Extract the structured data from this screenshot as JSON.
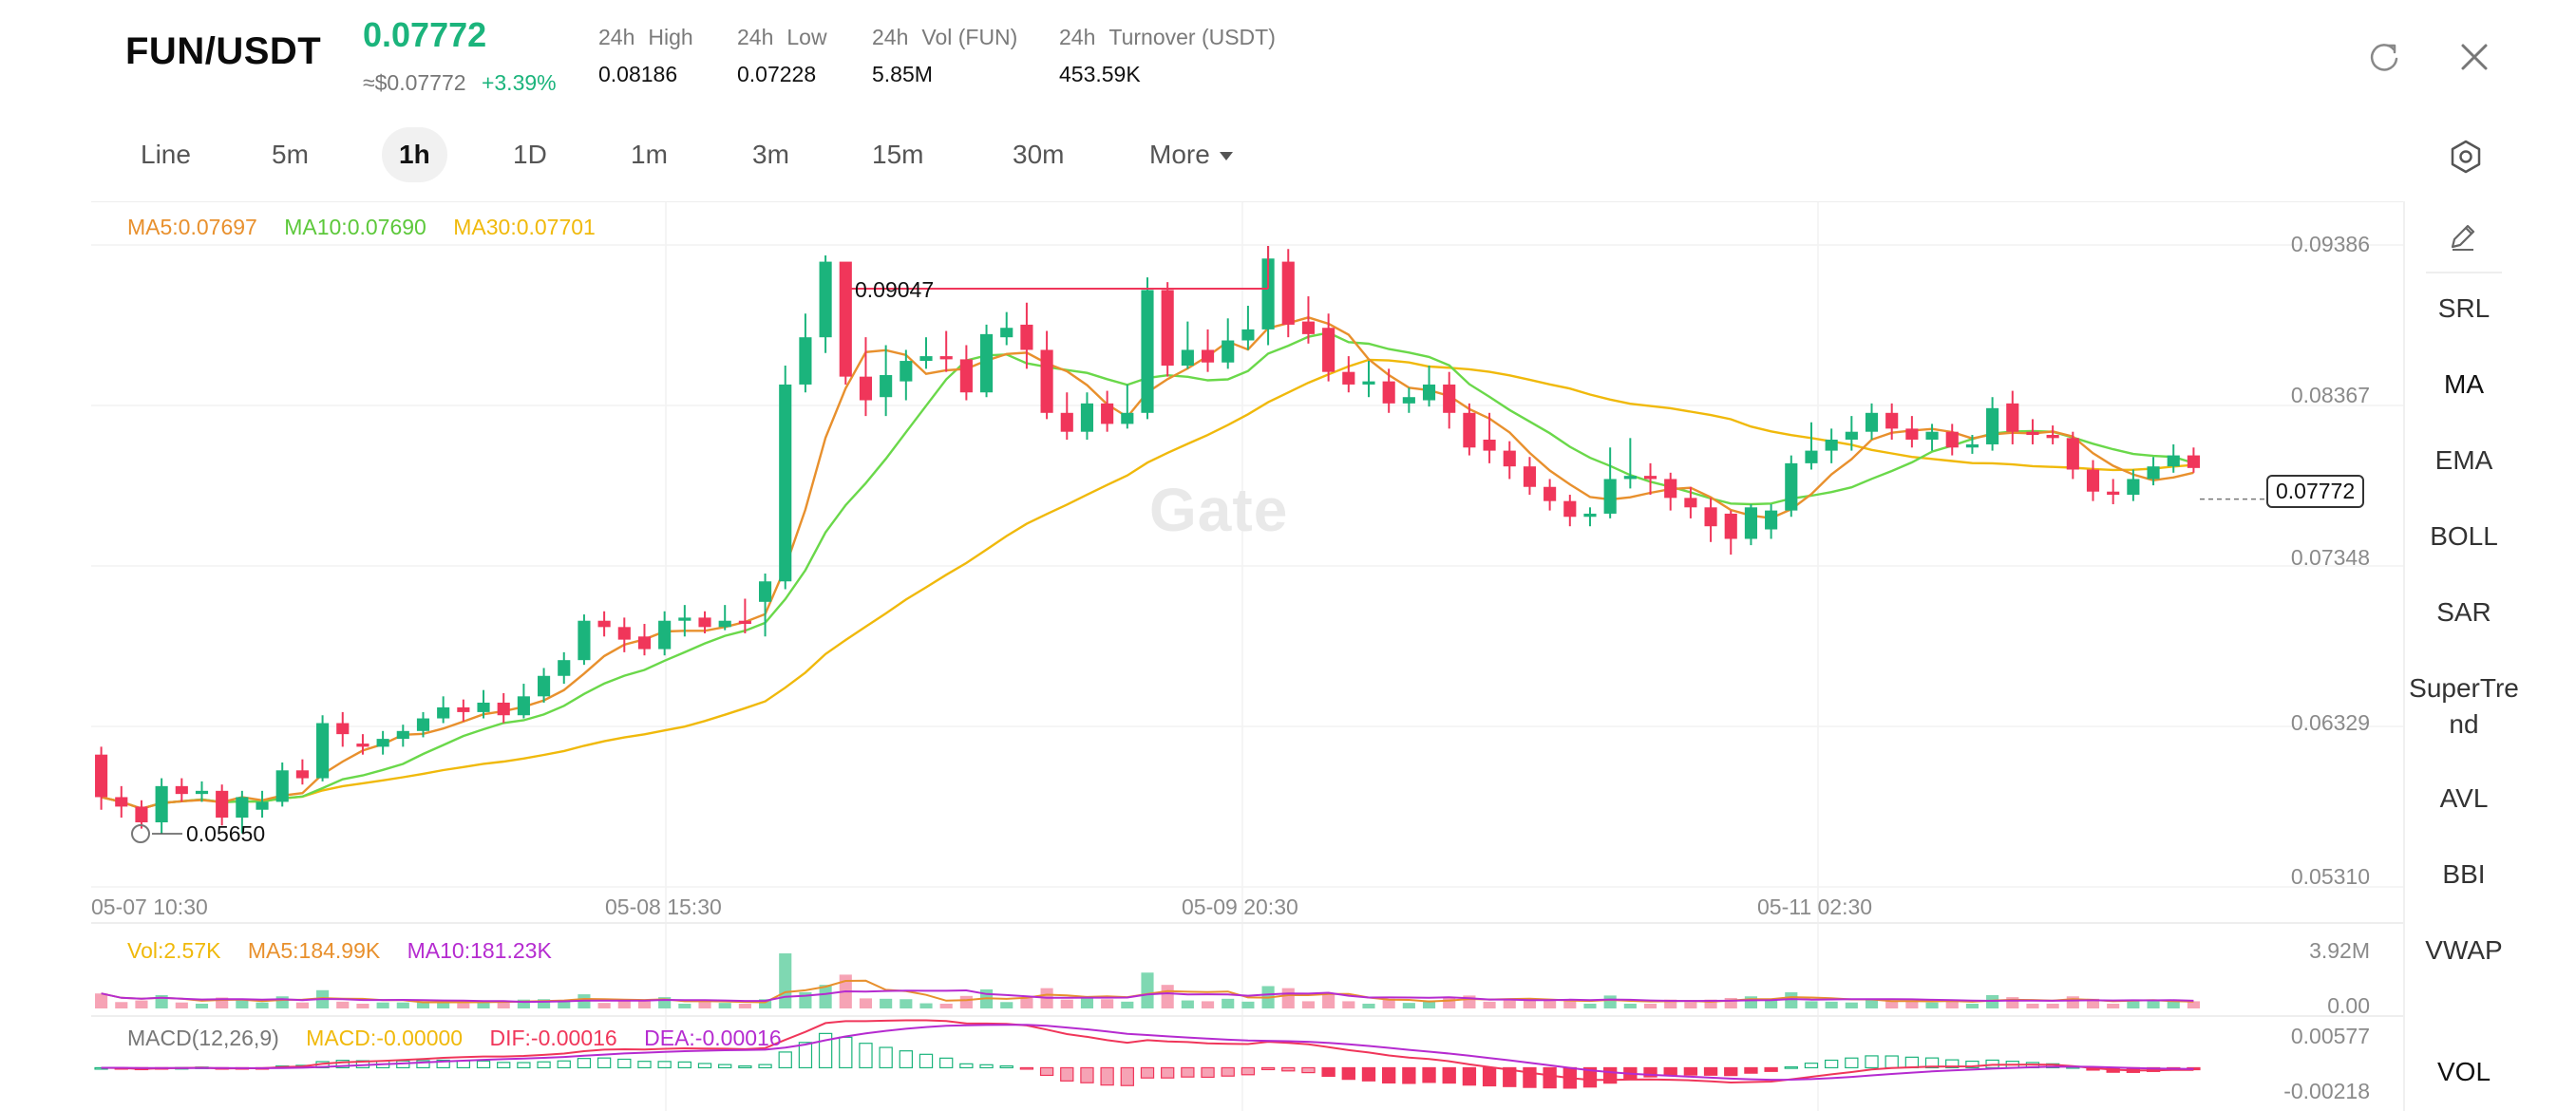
{
  "header": {
    "pair": "FUN/USDT",
    "price": "0.07772",
    "usd_price": "≈$0.07772",
    "change": "+3.39%",
    "stats": [
      {
        "period": "24h",
        "label": "High",
        "value": "0.08186"
      },
      {
        "period": "24h",
        "label": "Low",
        "value": "0.07228"
      },
      {
        "period": "24h",
        "label": "Vol (FUN)",
        "value": "5.85M"
      },
      {
        "period": "24h",
        "label": "Turnover (USDT)",
        "value": "453.59K"
      }
    ],
    "icons": [
      "refresh-icon",
      "close-icon"
    ]
  },
  "tabs": [
    {
      "label": "Line",
      "active": false
    },
    {
      "label": "5m",
      "active": false
    },
    {
      "label": "1h",
      "active": true
    },
    {
      "label": "1D",
      "active": false
    },
    {
      "label": "1m",
      "active": false
    },
    {
      "label": "3m",
      "active": false
    },
    {
      "label": "15m",
      "active": false
    },
    {
      "label": "30m",
      "active": false
    },
    {
      "label": "More",
      "active": false
    }
  ],
  "ma_legend": {
    "ma5": "MA5:0.07697",
    "ma10": "MA10:0.07690",
    "ma30": "MA30:0.07701"
  },
  "vol_legend": {
    "vol": "Vol:2.57K",
    "ma5": "MA5:184.99K",
    "ma10": "MA10:181.23K"
  },
  "macd_legend": {
    "name": "MACD(12,26,9)",
    "macd": "MACD:-0.00000",
    "dif": "DIF:-0.00016",
    "dea": "DEA:-0.00016"
  },
  "price_axis": [
    "0.09386",
    "0.08367",
    "0.07348",
    "0.06329",
    "0.05310"
  ],
  "vol_axis": [
    "3.92M",
    "0.00"
  ],
  "macd_axis": [
    "0.00577",
    "-0.00218"
  ],
  "time_axis": [
    "05-07 10:30",
    "05-08 15:30",
    "05-09 20:30",
    "05-11 02:30"
  ],
  "high_marker": "0.09047",
  "low_marker": "0.05650",
  "current_price_tag": "0.07772",
  "watermark": "Gate",
  "sidebar": [
    "SRL",
    "MA",
    "EMA",
    "BOLL",
    "SAR",
    "SuperTre nd",
    "AVL",
    "BBI",
    "VWAP",
    "VOL"
  ],
  "colors": {
    "up": "#1bb47c",
    "down": "#f0365a",
    "ma5": "#e8902d",
    "ma10": "#6ad84a",
    "ma30": "#f0b90b",
    "purple": "#b52bd0"
  },
  "chart_data": {
    "type": "candlestick",
    "price_range": [
      0.0531,
      0.09386
    ],
    "candles": [
      [
        0.0615,
        0.0588,
        0.062,
        0.058
      ],
      [
        0.0588,
        0.0582,
        0.0595,
        0.0575
      ],
      [
        0.0582,
        0.0572,
        0.0586,
        0.0568
      ],
      [
        0.0572,
        0.0595,
        0.06,
        0.0565
      ],
      [
        0.0595,
        0.059,
        0.06,
        0.0585
      ],
      [
        0.059,
        0.0592,
        0.0598,
        0.0585
      ],
      [
        0.0592,
        0.0575,
        0.0596,
        0.057
      ],
      [
        0.0575,
        0.0588,
        0.0592,
        0.0565
      ],
      [
        0.058,
        0.0585,
        0.0592,
        0.0575
      ],
      [
        0.0585,
        0.0605,
        0.061,
        0.0582
      ],
      [
        0.0605,
        0.06,
        0.0612,
        0.0596
      ],
      [
        0.06,
        0.0635,
        0.064,
        0.0598
      ],
      [
        0.0635,
        0.0628,
        0.0642,
        0.062
      ],
      [
        0.0622,
        0.062,
        0.0628,
        0.0615
      ],
      [
        0.062,
        0.0625,
        0.063,
        0.0615
      ],
      [
        0.0625,
        0.063,
        0.0634,
        0.062
      ],
      [
        0.063,
        0.0638,
        0.0642,
        0.0626
      ],
      [
        0.0638,
        0.0645,
        0.0652,
        0.0635
      ],
      [
        0.0645,
        0.0642,
        0.065,
        0.0636
      ],
      [
        0.0642,
        0.0648,
        0.0656,
        0.0638
      ],
      [
        0.0648,
        0.064,
        0.0654,
        0.0635
      ],
      [
        0.064,
        0.0652,
        0.066,
        0.0638
      ],
      [
        0.0652,
        0.0665,
        0.067,
        0.0648
      ],
      [
        0.0665,
        0.0675,
        0.068,
        0.066
      ],
      [
        0.0675,
        0.07,
        0.0704,
        0.0672
      ],
      [
        0.07,
        0.0696,
        0.0706,
        0.069
      ],
      [
        0.0696,
        0.0688,
        0.0702,
        0.068
      ],
      [
        0.069,
        0.0682,
        0.0698,
        0.0678
      ],
      [
        0.0682,
        0.07,
        0.0706,
        0.0678
      ],
      [
        0.07,
        0.0702,
        0.071,
        0.069
      ],
      [
        0.0702,
        0.0696,
        0.0706,
        0.0692
      ],
      [
        0.0696,
        0.07,
        0.071,
        0.0694
      ],
      [
        0.07,
        0.0698,
        0.0714,
        0.0692
      ],
      [
        0.0712,
        0.0725,
        0.073,
        0.069
      ],
      [
        0.0725,
        0.085,
        0.0862,
        0.072
      ],
      [
        0.085,
        0.088,
        0.0895,
        0.0845
      ],
      [
        0.088,
        0.0928,
        0.0932,
        0.087
      ],
      [
        0.0928,
        0.0855,
        0.0905,
        0.085
      ],
      [
        0.0855,
        0.084,
        0.088,
        0.083
      ],
      [
        0.0842,
        0.0856,
        0.0875,
        0.083
      ],
      [
        0.0852,
        0.0865,
        0.0872,
        0.084
      ],
      [
        0.0865,
        0.0868,
        0.088,
        0.086
      ],
      [
        0.0868,
        0.0866,
        0.0884,
        0.0858
      ],
      [
        0.0866,
        0.0845,
        0.0875,
        0.084
      ],
      [
        0.0845,
        0.0882,
        0.0888,
        0.0842
      ],
      [
        0.088,
        0.0886,
        0.0896,
        0.0875
      ],
      [
        0.0888,
        0.0872,
        0.0902,
        0.086
      ],
      [
        0.0872,
        0.0832,
        0.0884,
        0.0828
      ],
      [
        0.0832,
        0.082,
        0.0845,
        0.0815
      ],
      [
        0.082,
        0.0838,
        0.0845,
        0.0815
      ],
      [
        0.0838,
        0.0825,
        0.0846,
        0.082
      ],
      [
        0.0825,
        0.0832,
        0.085,
        0.0822
      ],
      [
        0.0832,
        0.091,
        0.0918,
        0.0828
      ],
      [
        0.091,
        0.0862,
        0.0915,
        0.0855
      ],
      [
        0.0862,
        0.0872,
        0.089,
        0.086
      ],
      [
        0.0872,
        0.0864,
        0.0885,
        0.0858
      ],
      [
        0.0864,
        0.0878,
        0.0892,
        0.086
      ],
      [
        0.0878,
        0.0885,
        0.09,
        0.0872
      ],
      [
        0.0885,
        0.093,
        0.0938,
        0.0875
      ],
      [
        0.0928,
        0.0888,
        0.0936,
        0.088
      ],
      [
        0.089,
        0.0882,
        0.0906,
        0.0876
      ],
      [
        0.0886,
        0.0858,
        0.0895,
        0.0852
      ],
      [
        0.0858,
        0.085,
        0.0868,
        0.0845
      ],
      [
        0.085,
        0.0852,
        0.0865,
        0.0842
      ],
      [
        0.0852,
        0.0838,
        0.086,
        0.0832
      ],
      [
        0.0838,
        0.0842,
        0.0848,
        0.0832
      ],
      [
        0.084,
        0.085,
        0.0862,
        0.0836
      ],
      [
        0.085,
        0.0832,
        0.0858,
        0.0822
      ],
      [
        0.0832,
        0.081,
        0.0838,
        0.0805
      ],
      [
        0.0815,
        0.0808,
        0.0832,
        0.08
      ],
      [
        0.0808,
        0.0798,
        0.0814,
        0.079
      ],
      [
        0.0798,
        0.0785,
        0.0804,
        0.078
      ],
      [
        0.0785,
        0.0776,
        0.079,
        0.077
      ],
      [
        0.0776,
        0.0766,
        0.078,
        0.076
      ],
      [
        0.0766,
        0.0768,
        0.0772,
        0.076
      ],
      [
        0.0768,
        0.079,
        0.081,
        0.0765
      ],
      [
        0.079,
        0.0792,
        0.0816,
        0.0784
      ],
      [
        0.0792,
        0.079,
        0.08,
        0.078
      ],
      [
        0.079,
        0.0778,
        0.0794,
        0.077
      ],
      [
        0.0778,
        0.0772,
        0.0785,
        0.0765
      ],
      [
        0.0772,
        0.076,
        0.0778,
        0.075
      ],
      [
        0.0768,
        0.0752,
        0.077,
        0.0742
      ],
      [
        0.0752,
        0.0772,
        0.0774,
        0.0748
      ],
      [
        0.0758,
        0.077,
        0.0774,
        0.0752
      ],
      [
        0.077,
        0.08,
        0.0805,
        0.0766
      ],
      [
        0.08,
        0.0808,
        0.0826,
        0.0796
      ],
      [
        0.0808,
        0.0815,
        0.0822,
        0.08
      ],
      [
        0.0815,
        0.082,
        0.083,
        0.0808
      ],
      [
        0.082,
        0.0832,
        0.0838,
        0.0815
      ],
      [
        0.0832,
        0.0822,
        0.0838,
        0.0815
      ],
      [
        0.0822,
        0.0815,
        0.083,
        0.081
      ],
      [
        0.0815,
        0.082,
        0.0825,
        0.0808
      ],
      [
        0.082,
        0.081,
        0.0825,
        0.0805
      ],
      [
        0.081,
        0.0812,
        0.0818,
        0.0806
      ],
      [
        0.0812,
        0.0835,
        0.0842,
        0.0808
      ],
      [
        0.0838,
        0.082,
        0.0846,
        0.0812
      ],
      [
        0.082,
        0.0818,
        0.0828,
        0.0812
      ],
      [
        0.0818,
        0.0816,
        0.0824,
        0.0812
      ],
      [
        0.0816,
        0.0796,
        0.082,
        0.079
      ],
      [
        0.0796,
        0.0782,
        0.0802,
        0.0776
      ],
      [
        0.0782,
        0.078,
        0.079,
        0.0774
      ],
      [
        0.078,
        0.079,
        0.0796,
        0.0776
      ],
      [
        0.079,
        0.0798,
        0.0804,
        0.0786
      ],
      [
        0.0798,
        0.0805,
        0.0812,
        0.0794
      ],
      [
        0.0805,
        0.0797,
        0.081,
        0.0794
      ]
    ],
    "volume_range": [
      0,
      3920000
    ],
    "macd_range": [
      -0.00218,
      0.00577
    ]
  }
}
